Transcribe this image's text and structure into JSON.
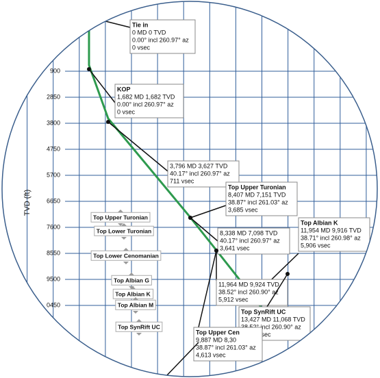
{
  "chart_data": {
    "type": "line",
    "y_label": "TVD (ft)",
    "xlim": [
      -3300,
      10787
    ],
    "ylim": [
      13100,
      -700
    ],
    "yticks": [
      {
        "value": 1900,
        "label": "900"
      },
      2850,
      3800,
      4750,
      5700,
      6650,
      7600,
      8550,
      9500,
      {
        "value": 10450,
        "label": "0450"
      }
    ],
    "grid": true,
    "series": [
      {
        "color": "#2e9a4e",
        "x": [
          0,
          0,
          711,
          3685,
          4613,
          5912,
          6824
        ],
        "values": [
          0,
          1682,
          3627,
          7151,
          8300,
          9924,
          11068
        ]
      }
    ],
    "callouts": [
      {
        "lines": [
          "Tie in",
          "0 MD 0 TVD",
          "0.00° incl 260.97° az",
          "0 vsec"
        ]
      },
      {
        "lines": [
          "KOP",
          "1,682 MD 1,682 TVD",
          "0.00° incl 260.97° az",
          "0 vsec"
        ]
      },
      {
        "lines": [
          "3,796 MD 3,627 TVD",
          "40.17° incl 260.97° az",
          "711 vsec"
        ]
      },
      {
        "lines": [
          "Top Upper Turonian",
          "8,407 MD 7,151 TVD",
          "38.87° incl 261.03° az",
          "3,685 vsec"
        ]
      },
      {
        "lines": [
          "8,338 MD 7,098 TVD",
          "40.17° incl 260.97° az",
          "3,641 vsec"
        ]
      },
      {
        "lines": [
          "Top Albian K",
          "11,954 MD 9,916 TVD",
          "38.71° incl 260.98° az",
          "5,906 vsec"
        ]
      },
      {
        "lines": [
          "11,964 MD 9,924 TVD",
          "38.52° incl 260.90° az",
          "5,912 vsec"
        ]
      },
      {
        "lines": [
          "Top SynRift UC",
          "13,427 MD 11,068 TVD",
          "38.52° incl 260.90° az",
          "6,824 vsec"
        ]
      },
      {
        "lines": [
          "Top Upper Cen",
          "9,887 MD 8,30",
          "38.87° incl 261.03° az",
          "4,613 vsec"
        ]
      }
    ],
    "formations": [
      "Top Upper Turonian",
      "Top Lower Turonian",
      "Top Lower Cenomanian",
      "Top Albian G",
      "Top Albian K",
      "Top Albian M",
      "Top SynRift UC"
    ]
  }
}
